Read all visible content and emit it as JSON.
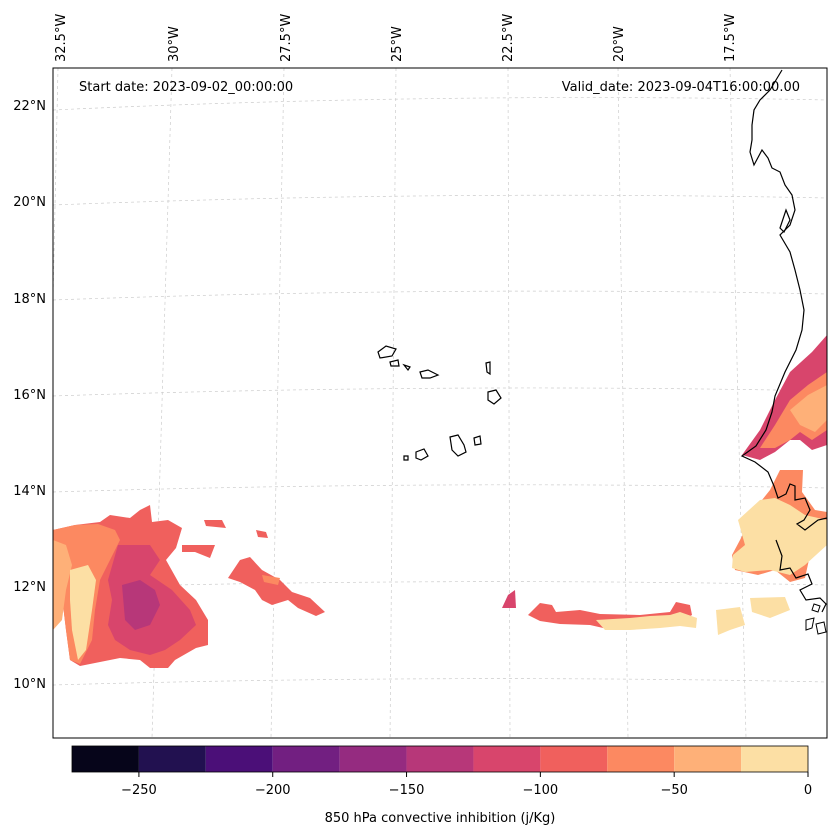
{
  "map": {
    "start_label": "Start date: 2023-09-02_00:00:00",
    "valid_label": "Valid_date: 2023-09-04T16:00:00.00",
    "lon_labels": [
      "32.5°W",
      "30°W",
      "27.5°W",
      "25°W",
      "22.5°W",
      "20°W",
      "17.5°W"
    ],
    "lat_labels": [
      "22°N",
      "20°N",
      "18°N",
      "16°N",
      "14°N",
      "12°N",
      "10°N"
    ],
    "gridlines": true
  },
  "colorbar": {
    "label": "850 hPa convective inhibition (j/Kg)",
    "ticks": [
      "−250",
      "−200",
      "−150",
      "−100",
      "−50",
      "0"
    ],
    "levels": [
      -275,
      -250,
      -225,
      -200,
      -175,
      -150,
      -125,
      -100,
      -75,
      -50,
      -25,
      0
    ],
    "colors": [
      "#06051a",
      "#221150",
      "#4b0f78",
      "#721f81",
      "#952b80",
      "#b73779",
      "#d8456c",
      "#f0605d",
      "#fc8961",
      "#feb078",
      "#fcdfa4"
    ]
  }
}
